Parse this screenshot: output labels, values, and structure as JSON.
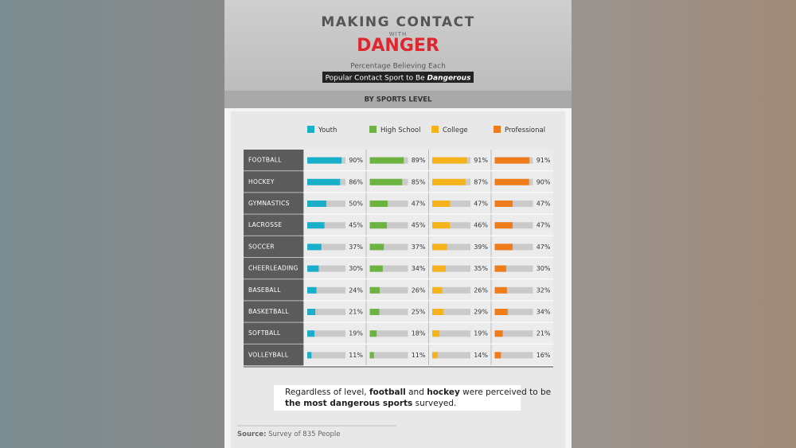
{
  "chart_data": {
    "type": "bar",
    "title_top": "MAKING CONTACT",
    "title_mid": "WITH",
    "title_main": "DANGER",
    "subtitle_line1": "Percentage Believing Each",
    "subtitle_line2": "Popular Contact Sport to Be ",
    "subtitle_emphasis": "Dangerous",
    "section_label": "BY SPORTS LEVEL",
    "categories": [
      "FOOTBALL",
      "HOCKEY",
      "GYMNASTICS",
      "LACROSSE",
      "SOCCER",
      "CHEERLEADING",
      "BASEBALL",
      "BASKETBALL",
      "SOFTBALL",
      "VOLLEYBALL"
    ],
    "xlim": [
      0,
      100
    ],
    "series": [
      {
        "name": "Youth",
        "color": "#1aafc8",
        "values": [
          90,
          86,
          50,
          45,
          37,
          30,
          24,
          21,
          19,
          11
        ],
        "value_labels": [
          "90%",
          "86%",
          "50%",
          "45%",
          "37%",
          "30%",
          "24%",
          "21%",
          "19%",
          "11%"
        ]
      },
      {
        "name": "High School",
        "color": "#6cb33f",
        "values": [
          89,
          85,
          47,
          45,
          37,
          34,
          26,
          25,
          18,
          11
        ],
        "value_labels": [
          "89%",
          "85%",
          "47%",
          "45%",
          "37%",
          "34%",
          "26%",
          "25%",
          "18%",
          "11%"
        ]
      },
      {
        "name": "College",
        "color": "#f5b21b",
        "values": [
          91,
          87,
          47,
          46,
          39,
          35,
          26,
          29,
          19,
          14
        ],
        "value_labels": [
          "91%",
          "87%",
          "47%",
          "46%",
          "39%",
          "35%",
          "26%",
          "29%",
          "19%",
          "14%"
        ]
      },
      {
        "name": "Professional",
        "color": "#ee7c1a",
        "values": [
          91,
          90,
          47,
          47,
          47,
          30,
          32,
          34,
          21,
          16
        ],
        "value_labels": [
          "91%",
          "90%",
          "47%",
          "47%",
          "47%",
          "30%",
          "32%",
          "34%",
          "21%",
          "16%"
        ]
      }
    ],
    "note_lines": [
      [
        {
          "text": "Regardless of level, ",
          "bold": false
        },
        {
          "text": "football",
          "bold": true
        },
        {
          "text": " and ",
          "bold": false
        },
        {
          "text": "hockey",
          "bold": true
        },
        {
          "text": " were perceived to be",
          "bold": false
        }
      ],
      [
        {
          "text": "the most dangerous sports",
          "bold": true
        },
        {
          "text": " surveyed.",
          "bold": false
        }
      ]
    ],
    "source_label": "Source:",
    "source_text": " Survey of 835 People"
  }
}
